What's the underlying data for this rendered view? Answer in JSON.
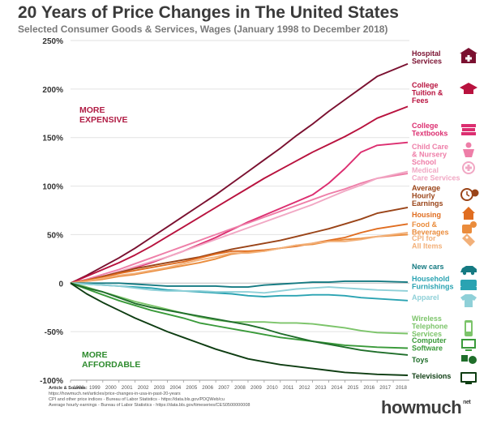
{
  "header": {
    "title": "20 Years of Price Changes in The United States",
    "subtitle": "Selected Consumer Goods & Services, Wages (January 1998 to December 2018)"
  },
  "sources": {
    "title": "Article & Sources:",
    "lines": [
      "https://howmuch.net/articles/price-changes-in-usa-in-past-20-years",
      "CPI and other price indices - Bureau of Labor Statistics - https://data.bls.gov/PDQWeb/cu",
      "Average hourly earnings - Bureau of Labor Statistics - https://data.bls.gov/timeseries/CES0500000008"
    ]
  },
  "logo": {
    "text": "howmuch",
    "suffix": "net"
  },
  "annotations": {
    "more_expensive": [
      "MORE",
      "EXPENSIVE"
    ],
    "more_affordable": [
      "MORE",
      "AFFORDABLE"
    ],
    "more_expensive_color": "#b01c44",
    "more_affordable_color": "#2e8b2e"
  },
  "chart_data": {
    "type": "line",
    "title": "20 Years of Price Changes in The United States",
    "subtitle": "Selected Consumer Goods & Services, Wages (January 1998 to December 2018)",
    "y_unit": "%",
    "ylim": [
      -100,
      250
    ],
    "yticks": [
      -100,
      -50,
      0,
      50,
      100,
      150,
      200,
      250
    ],
    "ytick_labels": [
      "-100%",
      "-50%",
      "0",
      "50%",
      "100%",
      "150%",
      "200%",
      "250%"
    ],
    "xlim": [
      1998,
      2018
    ],
    "xticks": [
      "1998",
      "1999",
      "2000",
      "2001",
      "2002",
      "2003",
      "2004",
      "2005",
      "2006",
      "2007",
      "2008",
      "2009",
      "2010",
      "2011",
      "2012",
      "2013",
      "2014",
      "2015",
      "2016",
      "2017",
      "2018"
    ],
    "grid": true,
    "legend": "right",
    "x": [
      1998,
      1999,
      2000,
      2001,
      2002,
      2003,
      2004,
      2005,
      2006,
      2007,
      2008,
      2009,
      2010,
      2011,
      2012,
      2013,
      2014,
      2015,
      2016,
      2017,
      2018.9
    ],
    "series": [
      {
        "name": "Hospital Services",
        "label": [
          "Hospital",
          "Services"
        ],
        "color": "#7a1030",
        "icon": "hospital-icon",
        "values": [
          0,
          8,
          17,
          26,
          36,
          47,
          58,
          69,
          80,
          91,
          103,
          115,
          127,
          139,
          152,
          164,
          177,
          189,
          201,
          213,
          226
        ]
      },
      {
        "name": "College Tuition & Fees",
        "label": [
          "College",
          "Tuition &",
          "Fees"
        ],
        "color": "#b8123e",
        "icon": "graduation-cap-icon",
        "values": [
          0,
          7,
          14,
          21,
          29,
          38,
          48,
          58,
          68,
          78,
          88,
          98,
          108,
          117,
          126,
          135,
          143,
          151,
          160,
          170,
          182
        ]
      },
      {
        "name": "College Textbooks",
        "label": [
          "College",
          "Textbooks"
        ],
        "color": "#dc2e70",
        "icon": "books-icon",
        "values": [
          0,
          3,
          7,
          11,
          16,
          21,
          27,
          33,
          40,
          47,
          55,
          63,
          70,
          77,
          84,
          91,
          103,
          118,
          135,
          142,
          145
        ]
      },
      {
        "name": "Child Care & Nursery School",
        "label": [
          "Child Care",
          "& Nursery",
          "School"
        ],
        "color": "#ee7ea8",
        "icon": "child-icon",
        "values": [
          0,
          4,
          9,
          14,
          20,
          26,
          32,
          38,
          44,
          50,
          56,
          62,
          68,
          74,
          80,
          86,
          92,
          97,
          103,
          108,
          113
        ]
      },
      {
        "name": "Medical Care Services",
        "label": [
          "Medical",
          "Care Services"
        ],
        "color": "#f1a8c4",
        "icon": "medical-cross-icon",
        "values": [
          0,
          3,
          7,
          12,
          17,
          22,
          27,
          33,
          39,
          45,
          51,
          57,
          63,
          69,
          75,
          81,
          88,
          95,
          101,
          108,
          115
        ]
      },
      {
        "name": "Average Hourly Earnings",
        "label": [
          "Average",
          "Hourly",
          "Earnings"
        ],
        "color": "#9a4418",
        "icon": "clock-dollar-icon",
        "values": [
          0,
          3,
          7,
          11,
          15,
          18,
          21,
          24,
          27,
          31,
          35,
          38,
          41,
          44,
          48,
          52,
          56,
          61,
          66,
          72,
          78
        ]
      },
      {
        "name": "Housing",
        "label": [
          "Housing"
        ],
        "color": "#e06d20",
        "icon": "house-icon",
        "values": [
          0,
          3,
          6,
          10,
          13,
          16,
          19,
          22,
          26,
          30,
          33,
          33,
          34,
          36,
          38,
          41,
          44,
          47,
          52,
          56,
          61
        ]
      },
      {
        "name": "Food & Beverages",
        "label": [
          "Food &",
          "Beverages"
        ],
        "color": "#ea8c3c",
        "icon": "food-icon",
        "values": [
          0,
          2,
          4,
          7,
          9,
          12,
          15,
          18,
          21,
          25,
          30,
          32,
          33,
          36,
          39,
          40,
          43,
          45,
          46,
          48,
          50
        ]
      },
      {
        "name": "CPI for All Items",
        "label": [
          "CPI for",
          "All Items"
        ],
        "color": "#f2b079",
        "icon": "price-tag-icon",
        "values": [
          0,
          2,
          5,
          8,
          10,
          13,
          16,
          20,
          24,
          27,
          31,
          31,
          33,
          36,
          39,
          41,
          43,
          43,
          45,
          48,
          52
        ]
      },
      {
        "name": "New cars",
        "label": [
          "New cars"
        ],
        "color": "#157a82",
        "icon": "car-icon",
        "values": [
          0,
          0,
          0,
          0,
          -1,
          -2,
          -3,
          -3,
          -3,
          -3,
          -4,
          -4,
          -2,
          -1,
          0,
          1,
          1,
          2,
          2,
          2,
          1
        ]
      },
      {
        "name": "Household Furnishings",
        "label": [
          "Household",
          "Furnishings"
        ],
        "color": "#2aa3b2",
        "icon": "sofa-icon",
        "values": [
          0,
          -1,
          -2,
          -3,
          -4,
          -5,
          -7,
          -8,
          -9,
          -10,
          -11,
          -13,
          -14,
          -13,
          -13,
          -12,
          -12,
          -13,
          -15,
          -16,
          -18
        ]
      },
      {
        "name": "Apparel",
        "label": [
          "Apparel"
        ],
        "color": "#8fd0d8",
        "icon": "shirt-icon",
        "values": [
          0,
          -1,
          -2,
          -3,
          -5,
          -7,
          -8,
          -8,
          -8,
          -9,
          -9,
          -9,
          -10,
          -8,
          -6,
          -5,
          -4,
          -5,
          -6,
          -7,
          -8
        ]
      },
      {
        "name": "Wireless Telephone Services",
        "label": [
          "Wireless",
          "Telephone",
          "Services"
        ],
        "color": "#7cc46a",
        "icon": "phone-icon",
        "values": [
          0,
          -4,
          -9,
          -14,
          -19,
          -23,
          -27,
          -31,
          -35,
          -38,
          -40,
          -40,
          -40,
          -41,
          -41,
          -42,
          -44,
          -46,
          -49,
          -51,
          -52
        ]
      },
      {
        "name": "Computer Software",
        "label": [
          "Computer",
          "Software"
        ],
        "color": "#3a9a3a",
        "icon": "computer-icon",
        "values": [
          0,
          -6,
          -12,
          -18,
          -23,
          -28,
          -32,
          -36,
          -41,
          -44,
          -47,
          -50,
          -53,
          -56,
          -58,
          -60,
          -62,
          -64,
          -65,
          -66,
          -67
        ]
      },
      {
        "name": "Toys",
        "label": [
          "Toys"
        ],
        "color": "#1f6e2a",
        "icon": "toy-icon",
        "values": [
          0,
          -5,
          -9,
          -15,
          -21,
          -25,
          -28,
          -31,
          -34,
          -37,
          -40,
          -43,
          -47,
          -52,
          -56,
          -60,
          -63,
          -66,
          -69,
          -71,
          -74
        ]
      },
      {
        "name": "Televisions",
        "label": [
          "Televisions"
        ],
        "color": "#0e3d12",
        "icon": "tv-icon",
        "values": [
          0,
          -11,
          -20,
          -28,
          -36,
          -43,
          -50,
          -56,
          -62,
          -68,
          -73,
          -78,
          -81,
          -84,
          -86,
          -88,
          -90,
          -92,
          -93,
          -94,
          -95
        ]
      }
    ]
  }
}
